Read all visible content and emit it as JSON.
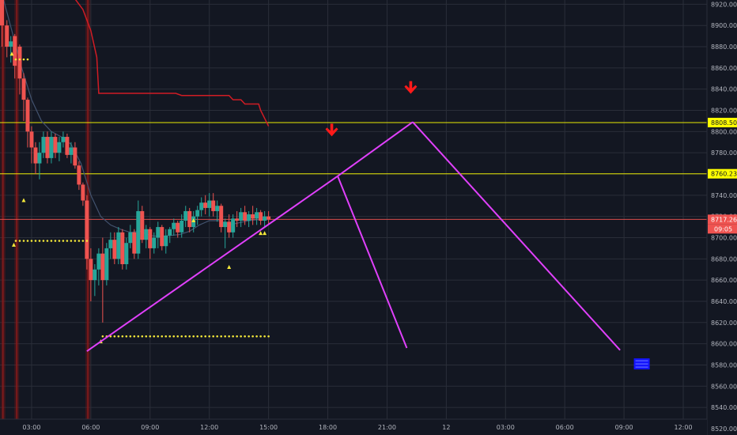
{
  "chart_data": {
    "type": "candlestick",
    "title": "",
    "y_ticks": [
      "8520.00",
      "8540.00",
      "8560.00",
      "8580.00",
      "8600.00",
      "8620.00",
      "8640.00",
      "8660.00",
      "8680.00",
      "8700.00",
      "8720.00",
      "8740.00",
      "8760.00",
      "8780.00",
      "8800.00",
      "8820.00",
      "8840.00",
      "8860.00",
      "8880.00",
      "8900.00",
      "8920.00"
    ],
    "ylim": [
      8514,
      8924
    ],
    "x_ticks": [
      {
        "label": "03:00",
        "h": 3
      },
      {
        "label": "06:00",
        "h": 6
      },
      {
        "label": "09:00",
        "h": 9
      },
      {
        "label": "12:00",
        "h": 12
      },
      {
        "label": "15:00",
        "h": 15
      },
      {
        "label": "18:00",
        "h": 18
      },
      {
        "label": "21:00",
        "h": 21
      },
      {
        "label": "12",
        "h": 24
      },
      {
        "label": "03:00",
        "h": 27
      },
      {
        "label": "06:00",
        "h": 30
      },
      {
        "label": "09:00",
        "h": 33
      },
      {
        "label": "12:00",
        "h": 36
      }
    ],
    "xlim": [
      1.4,
      37.2
    ],
    "candles": [
      [
        1.5,
        8930,
        8935,
        8880,
        8900
      ],
      [
        1.75,
        8900,
        8905,
        8870,
        8880
      ],
      [
        1.95,
        8880,
        8890,
        8865,
        8885
      ],
      [
        2.15,
        8890,
        8892,
        8850,
        8862
      ],
      [
        2.4,
        8880,
        8882,
        8835,
        8850
      ],
      [
        2.6,
        8850,
        8855,
        8810,
        8830
      ],
      [
        2.8,
        8830,
        8832,
        8785,
        8800
      ],
      [
        3.0,
        8800,
        8805,
        8770,
        8785
      ],
      [
        3.2,
        8785,
        8790,
        8760,
        8770
      ],
      [
        3.4,
        8770,
        8790,
        8755,
        8780
      ],
      [
        3.6,
        8780,
        8800,
        8775,
        8795
      ],
      [
        3.8,
        8795,
        8800,
        8770,
        8775
      ],
      [
        4.0,
        8775,
        8800,
        8770,
        8795
      ],
      [
        4.2,
        8795,
        8798,
        8775,
        8780
      ],
      [
        4.4,
        8780,
        8795,
        8772,
        8790
      ],
      [
        4.6,
        8790,
        8800,
        8785,
        8795
      ],
      [
        4.8,
        8795,
        8798,
        8775,
        8778
      ],
      [
        5.0,
        8778,
        8790,
        8770,
        8785
      ],
      [
        5.2,
        8785,
        8790,
        8765,
        8768
      ],
      [
        5.4,
        8768,
        8772,
        8745,
        8750
      ],
      [
        5.6,
        8750,
        8752,
        8730,
        8735
      ],
      [
        5.8,
        8735,
        8740,
        8670,
        8680
      ],
      [
        6.0,
        8680,
        8690,
        8640,
        8660
      ],
      [
        6.2,
        8660,
        8675,
        8645,
        8670
      ],
      [
        6.4,
        8670,
        8690,
        8655,
        8685
      ],
      [
        6.6,
        8685,
        8700,
        8620,
        8660
      ],
      [
        6.8,
        8660,
        8695,
        8655,
        8690
      ],
      [
        7.0,
        8690,
        8705,
        8680,
        8698
      ],
      [
        7.2,
        8698,
        8705,
        8675,
        8680
      ],
      [
        7.4,
        8680,
        8710,
        8675,
        8705
      ],
      [
        7.6,
        8705,
        8708,
        8670,
        8675
      ],
      [
        7.8,
        8675,
        8700,
        8670,
        8695
      ],
      [
        8.0,
        8695,
        8712,
        8690,
        8705
      ],
      [
        8.2,
        8705,
        8708,
        8680,
        8685
      ],
      [
        8.4,
        8685,
        8735,
        8680,
        8725
      ],
      [
        8.6,
        8725,
        8730,
        8695,
        8698
      ],
      [
        8.8,
        8698,
        8712,
        8690,
        8708
      ],
      [
        9.0,
        8708,
        8710,
        8680,
        8690
      ],
      [
        9.2,
        8690,
        8705,
        8685,
        8700
      ],
      [
        9.4,
        8700,
        8715,
        8690,
        8710
      ],
      [
        9.6,
        8710,
        8712,
        8688,
        8692
      ],
      [
        9.8,
        8692,
        8708,
        8685,
        8702
      ],
      [
        10.0,
        8702,
        8710,
        8695,
        8708
      ],
      [
        10.2,
        8708,
        8718,
        8702,
        8714
      ],
      [
        10.4,
        8714,
        8716,
        8700,
        8705
      ],
      [
        10.6,
        8705,
        8722,
        8700,
        8716
      ],
      [
        10.8,
        8716,
        8730,
        8710,
        8725
      ],
      [
        11.0,
        8725,
        8728,
        8705,
        8710
      ],
      [
        11.2,
        8710,
        8725,
        8705,
        8720
      ],
      [
        11.4,
        8720,
        8730,
        8712,
        8726
      ],
      [
        11.6,
        8726,
        8738,
        8720,
        8733
      ],
      [
        11.8,
        8733,
        8740,
        8722,
        8728
      ],
      [
        12.0,
        8728,
        8742,
        8720,
        8735
      ],
      [
        12.2,
        8735,
        8742,
        8720,
        8725
      ],
      [
        12.4,
        8725,
        8735,
        8715,
        8730
      ],
      [
        12.6,
        8730,
        8732,
        8705,
        8710
      ],
      [
        12.8,
        8710,
        8718,
        8690,
        8715
      ],
      [
        13.0,
        8715,
        8722,
        8700,
        8705
      ],
      [
        13.2,
        8705,
        8722,
        8700,
        8718
      ],
      [
        13.4,
        8718,
        8725,
        8710,
        8716
      ],
      [
        13.6,
        8716,
        8728,
        8710,
        8724
      ],
      [
        13.8,
        8724,
        8730,
        8712,
        8716
      ],
      [
        14.0,
        8716,
        8725,
        8710,
        8722
      ],
      [
        14.2,
        8722,
        8730,
        8712,
        8718
      ],
      [
        14.4,
        8718,
        8728,
        8712,
        8724
      ],
      [
        14.6,
        8724,
        8726,
        8712,
        8716
      ],
      [
        14.8,
        8716,
        8725,
        8710,
        8720
      ],
      [
        15.0,
        8720,
        8725,
        8713,
        8717
      ]
    ],
    "ema": [
      [
        1.5,
        8930
      ],
      [
        2,
        8895
      ],
      [
        2.5,
        8860
      ],
      [
        3,
        8830
      ],
      [
        3.5,
        8810
      ],
      [
        4,
        8800
      ],
      [
        4.5,
        8795
      ],
      [
        5,
        8788
      ],
      [
        5.5,
        8770
      ],
      [
        6,
        8740
      ],
      [
        6.5,
        8720
      ],
      [
        7,
        8712
      ],
      [
        7.5,
        8708
      ],
      [
        8,
        8705
      ],
      [
        8.5,
        8706
      ],
      [
        9,
        8702
      ],
      [
        9.5,
        8701
      ],
      [
        10,
        8702
      ],
      [
        10.5,
        8703
      ],
      [
        11,
        8706
      ],
      [
        11.5,
        8712
      ],
      [
        12,
        8716
      ],
      [
        12.5,
        8716
      ],
      [
        13,
        8712
      ],
      [
        13.5,
        8714
      ],
      [
        14,
        8716
      ],
      [
        14.5,
        8717
      ],
      [
        15,
        8717
      ]
    ],
    "trail_stop": [
      [
        5.0,
        8930
      ],
      [
        5.6,
        8915
      ],
      [
        6.0,
        8895
      ],
      [
        6.3,
        8870
      ],
      [
        6.4,
        8836
      ],
      [
        10.0,
        8836
      ],
      [
        10.3,
        8836
      ],
      [
        10.6,
        8834
      ],
      [
        13.0,
        8834
      ],
      [
        13.2,
        8830
      ],
      [
        13.6,
        8830
      ],
      [
        13.8,
        8826
      ],
      [
        14.2,
        8826
      ],
      [
        14.5,
        8826
      ],
      [
        14.6,
        8820
      ],
      [
        15.0,
        8805
      ]
    ],
    "support_dots": [
      {
        "x0": 2.2,
        "x1": 2.8,
        "y": 8868
      },
      {
        "x0": 2.2,
        "x1": 5.85,
        "y": 8697
      },
      {
        "x0": 6.6,
        "x1": 15.0,
        "y": 8607
      }
    ],
    "up_triangles": [
      [
        2.0,
        8873
      ],
      [
        2.1,
        8693
      ],
      [
        2.6,
        8735
      ],
      [
        6.5,
        8602
      ],
      [
        11.2,
        8716
      ],
      [
        13.0,
        8672
      ],
      [
        14.6,
        8704
      ],
      [
        14.8,
        8704
      ]
    ],
    "h_levels": [
      {
        "value": 8808.5,
        "label": "8808.50",
        "color": "#ffff00"
      },
      {
        "value": 8760.23,
        "label": "8760.23",
        "color": "#ffff00"
      },
      {
        "value": 8717.26,
        "label": "8717.26",
        "color": "#ef5350"
      }
    ],
    "countdown": "09:05",
    "trendlines": [
      {
        "from": [
          5.8,
          8593
        ],
        "to": [
          18.5,
          8758
        ],
        "color": "#e040fb"
      },
      {
        "from": [
          18.5,
          8758
        ],
        "to": [
          22.0,
          8596
        ],
        "color": "#e040fb"
      },
      {
        "from": [
          18.5,
          8758
        ],
        "to": [
          22.3,
          8809
        ],
        "color": "#e040fb"
      },
      {
        "from": [
          22.3,
          8809
        ],
        "to": [
          32.8,
          8594
        ],
        "color": "#e040fb"
      }
    ],
    "arrows": [
      [
        18.2,
        8800
      ],
      [
        22.2,
        8840
      ]
    ],
    "marker": [
      33.9,
      8581
    ],
    "red_vlines": [
      1.55,
      2.25,
      5.85
    ]
  },
  "colors": {
    "background": "#131722",
    "grid": "#2a2e39",
    "up": "#26a69a",
    "down": "#ef5350",
    "text": "#b2b5be",
    "ema": "#42526e",
    "trail": "#d01c24",
    "dots": "#f5e93a",
    "marker": "#1414ff"
  }
}
